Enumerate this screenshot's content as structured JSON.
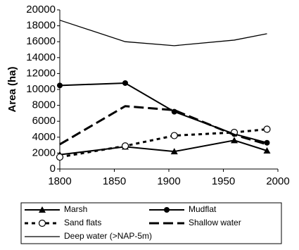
{
  "chart_data": {
    "type": "line",
    "y_label": "Area (ha)",
    "x": [
      1800,
      1860,
      1905,
      1960,
      1990
    ],
    "xlim": [
      1800,
      2000
    ],
    "xticks": [
      1800,
      1850,
      1900,
      1950,
      2000
    ],
    "ylim": [
      0,
      20000
    ],
    "yticks": [
      0,
      2000,
      4000,
      6000,
      8000,
      10000,
      12000,
      14000,
      16000,
      18000,
      20000
    ],
    "grid": false,
    "legend": "bottom",
    "series": [
      {
        "name": "Marsh",
        "color": "#000000",
        "marker": "triangle",
        "dash": "solid",
        "values": [
          1800,
          2800,
          2200,
          3600,
          2300
        ]
      },
      {
        "name": "Mudflat",
        "color": "#000000",
        "marker": "circle",
        "dash": "solid",
        "values": [
          10500,
          10800,
          7200,
          4400,
          3300
        ]
      },
      {
        "name": "Sand flats",
        "color": "#000000",
        "marker": "open-circle",
        "dash": "dotted",
        "values": [
          1500,
          2900,
          4200,
          4600,
          5000
        ]
      },
      {
        "name": "Shallow water",
        "color": "#000000",
        "dash": "dashed",
        "values": [
          3100,
          7900,
          7400,
          4300,
          3100
        ]
      },
      {
        "name": "Deep water (>NAP-5m)",
        "color": "#000000",
        "dash": "thin",
        "values": [
          18700,
          16000,
          15500,
          16200,
          17000
        ]
      }
    ]
  }
}
